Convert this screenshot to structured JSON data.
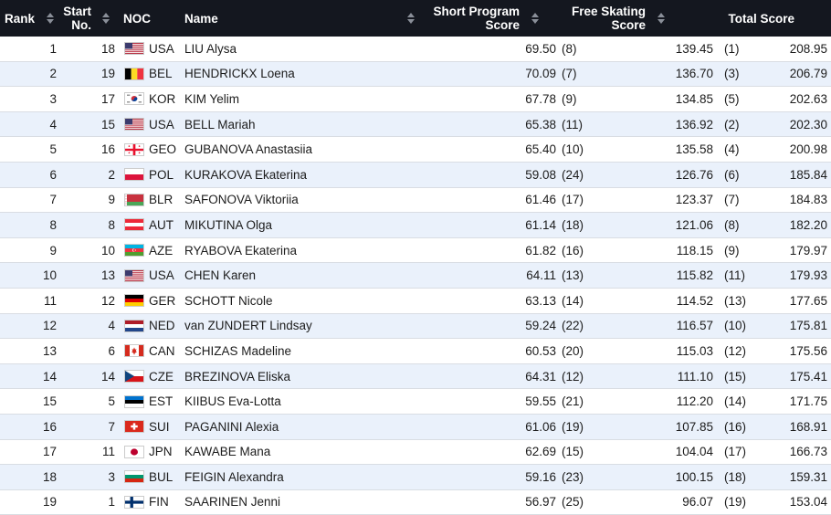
{
  "header": {
    "rank": "Rank",
    "start_line1": "Start",
    "start_line2": "No.",
    "noc": "NOC",
    "name": "Name",
    "sp_line1": "Short Program",
    "sp_line2": "Score",
    "fs_line1": "Free Skating",
    "fs_line2": "Score",
    "total": "Total Score"
  },
  "rows": [
    {
      "rank": "1",
      "start": "18",
      "noc": "USA",
      "flag": "usa",
      "name": "LIU Alysa",
      "sp": "69.50",
      "sp_rank": "(8)",
      "fs": "139.45",
      "fs_rank": "(1)",
      "total": "208.95"
    },
    {
      "rank": "2",
      "start": "19",
      "noc": "BEL",
      "flag": "bel",
      "name": "HENDRICKX Loena",
      "sp": "70.09",
      "sp_rank": "(7)",
      "fs": "136.70",
      "fs_rank": "(3)",
      "total": "206.79"
    },
    {
      "rank": "3",
      "start": "17",
      "noc": "KOR",
      "flag": "kor",
      "name": "KIM Yelim",
      "sp": "67.78",
      "sp_rank": "(9)",
      "fs": "134.85",
      "fs_rank": "(5)",
      "total": "202.63"
    },
    {
      "rank": "4",
      "start": "15",
      "noc": "USA",
      "flag": "usa",
      "name": "BELL Mariah",
      "sp": "65.38",
      "sp_rank": "(11)",
      "fs": "136.92",
      "fs_rank": "(2)",
      "total": "202.30"
    },
    {
      "rank": "5",
      "start": "16",
      "noc": "GEO",
      "flag": "geo",
      "name": "GUBANOVA Anastasiia",
      "sp": "65.40",
      "sp_rank": "(10)",
      "fs": "135.58",
      "fs_rank": "(4)",
      "total": "200.98"
    },
    {
      "rank": "6",
      "start": "2",
      "noc": "POL",
      "flag": "pol",
      "name": "KURAKOVA Ekaterina",
      "sp": "59.08",
      "sp_rank": "(24)",
      "fs": "126.76",
      "fs_rank": "(6)",
      "total": "185.84"
    },
    {
      "rank": "7",
      "start": "9",
      "noc": "BLR",
      "flag": "blr",
      "name": "SAFONOVA Viktoriia",
      "sp": "61.46",
      "sp_rank": "(17)",
      "fs": "123.37",
      "fs_rank": "(7)",
      "total": "184.83"
    },
    {
      "rank": "8",
      "start": "8",
      "noc": "AUT",
      "flag": "aut",
      "name": "MIKUTINA Olga",
      "sp": "61.14",
      "sp_rank": "(18)",
      "fs": "121.06",
      "fs_rank": "(8)",
      "total": "182.20"
    },
    {
      "rank": "9",
      "start": "10",
      "noc": "AZE",
      "flag": "aze",
      "name": "RYABOVA Ekaterina",
      "sp": "61.82",
      "sp_rank": "(16)",
      "fs": "118.15",
      "fs_rank": "(9)",
      "total": "179.97"
    },
    {
      "rank": "10",
      "start": "13",
      "noc": "USA",
      "flag": "usa",
      "name": "CHEN Karen",
      "sp": "64.11",
      "sp_rank": "(13)",
      "fs": "115.82",
      "fs_rank": "(11)",
      "total": "179.93"
    },
    {
      "rank": "11",
      "start": "12",
      "noc": "GER",
      "flag": "ger",
      "name": "SCHOTT Nicole",
      "sp": "63.13",
      "sp_rank": "(14)",
      "fs": "114.52",
      "fs_rank": "(13)",
      "total": "177.65"
    },
    {
      "rank": "12",
      "start": "4",
      "noc": "NED",
      "flag": "ned",
      "name": "van ZUNDERT Lindsay",
      "sp": "59.24",
      "sp_rank": "(22)",
      "fs": "116.57",
      "fs_rank": "(10)",
      "total": "175.81"
    },
    {
      "rank": "13",
      "start": "6",
      "noc": "CAN",
      "flag": "can",
      "name": "SCHIZAS Madeline",
      "sp": "60.53",
      "sp_rank": "(20)",
      "fs": "115.03",
      "fs_rank": "(12)",
      "total": "175.56"
    },
    {
      "rank": "14",
      "start": "14",
      "noc": "CZE",
      "flag": "cze",
      "name": "BREZINOVA Eliska",
      "sp": "64.31",
      "sp_rank": "(12)",
      "fs": "111.10",
      "fs_rank": "(15)",
      "total": "175.41"
    },
    {
      "rank": "15",
      "start": "5",
      "noc": "EST",
      "flag": "est",
      "name": "KIIBUS Eva-Lotta",
      "sp": "59.55",
      "sp_rank": "(21)",
      "fs": "112.20",
      "fs_rank": "(14)",
      "total": "171.75"
    },
    {
      "rank": "16",
      "start": "7",
      "noc": "SUI",
      "flag": "sui",
      "name": "PAGANINI Alexia",
      "sp": "61.06",
      "sp_rank": "(19)",
      "fs": "107.85",
      "fs_rank": "(16)",
      "total": "168.91"
    },
    {
      "rank": "17",
      "start": "11",
      "noc": "JPN",
      "flag": "jpn",
      "name": "KAWABE Mana",
      "sp": "62.69",
      "sp_rank": "(15)",
      "fs": "104.04",
      "fs_rank": "(17)",
      "total": "166.73"
    },
    {
      "rank": "18",
      "start": "3",
      "noc": "BUL",
      "flag": "bul",
      "name": "FEIGIN Alexandra",
      "sp": "59.16",
      "sp_rank": "(23)",
      "fs": "100.15",
      "fs_rank": "(18)",
      "total": "159.31"
    },
    {
      "rank": "19",
      "start": "1",
      "noc": "FIN",
      "flag": "fin",
      "name": "SAARINEN Jenni",
      "sp": "56.97",
      "sp_rank": "(25)",
      "fs": "96.07",
      "fs_rank": "(19)",
      "total": "153.04"
    }
  ]
}
